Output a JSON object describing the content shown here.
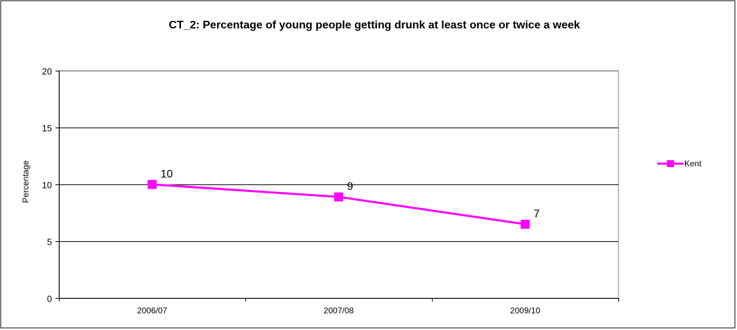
{
  "chart_data": {
    "type": "line",
    "title": "CT_2: Percentage of young people getting drunk at least once or twice a week",
    "ylabel": "Percentage",
    "xlabel": "",
    "categories": [
      "2006/07",
      "2007/08",
      "2009/10"
    ],
    "ylim": [
      0,
      20
    ],
    "yticks": [
      0,
      5,
      10,
      15,
      20
    ],
    "grid": true,
    "legend_position": "right",
    "series": [
      {
        "name": "Kent",
        "color": "#ff00ff",
        "values": [
          10,
          8.9,
          6.5
        ],
        "data_labels": [
          "10",
          "9",
          "7"
        ]
      }
    ]
  }
}
